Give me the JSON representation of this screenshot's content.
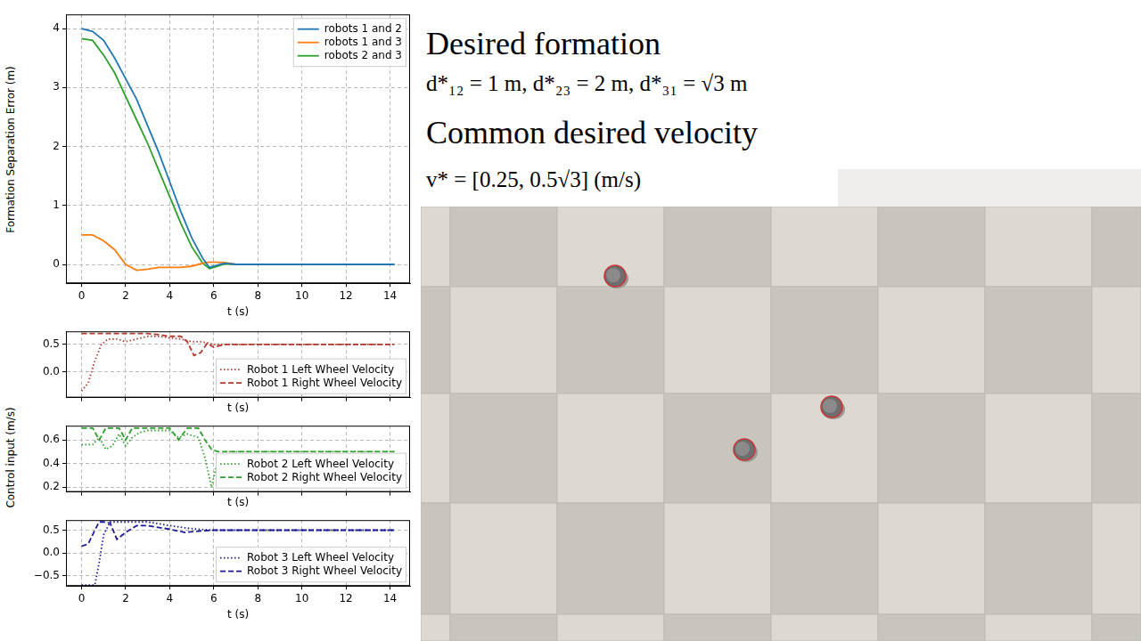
{
  "chart_data": [
    {
      "type": "line",
      "xlabel": "t (s)",
      "ylabel": "Formation Separation Error (m)",
      "xlim": [
        -0.71,
        14.91
      ],
      "xticks": [
        0,
        2,
        4,
        6,
        8,
        10,
        12,
        14
      ],
      "ylim": [
        -0.32,
        4.24
      ],
      "yticks": [
        0,
        1,
        2,
        3,
        4
      ],
      "grid": true,
      "legend": "upper right",
      "x": [
        0,
        0.5,
        1,
        1.5,
        2,
        2.5,
        3,
        3.5,
        4,
        4.5,
        5,
        5.5,
        5.8,
        6,
        6.5,
        7,
        8,
        10,
        12,
        14.2
      ],
      "series": [
        {
          "name": "robots 1 and 2",
          "color": "#1f77b4",
          "line_style": "solid",
          "values": [
            4.0,
            3.95,
            3.8,
            3.5,
            3.15,
            2.8,
            2.35,
            1.9,
            1.4,
            0.9,
            0.45,
            0.1,
            -0.05,
            -0.03,
            0.02,
            0,
            0,
            0,
            0,
            0
          ]
        },
        {
          "name": "robots 1 and 3",
          "color": "#ff7f0e",
          "line_style": "solid",
          "values": [
            0.5,
            0.5,
            0.4,
            0.25,
            0.0,
            -0.1,
            -0.08,
            -0.05,
            -0.05,
            -0.05,
            -0.03,
            0.02,
            0.04,
            0.04,
            0.03,
            0,
            0,
            0,
            0,
            0
          ]
        },
        {
          "name": "robots 2 and 3",
          "color": "#2ca02c",
          "line_style": "solid",
          "values": [
            3.83,
            3.8,
            3.55,
            3.25,
            2.85,
            2.45,
            2.05,
            1.6,
            1.15,
            0.7,
            0.3,
            0.02,
            -0.07,
            -0.05,
            0.01,
            0,
            0,
            0,
            0,
            0
          ]
        }
      ]
    },
    {
      "type": "line",
      "xlabel": "t (s)",
      "xlim": [
        -0.71,
        14.91
      ],
      "xticks": [
        0,
        2,
        4,
        6,
        8,
        10,
        12,
        14
      ],
      "ylim": [
        -0.47,
        0.74
      ],
      "yticks": [
        {
          "value": 0,
          "label": "0.0"
        },
        0.5
      ],
      "grid": true,
      "legend": "lower right",
      "tick_labels": "y",
      "x": [
        0,
        0.3,
        0.6,
        0.9,
        1.2,
        1.6,
        2,
        2.5,
        3,
        3.5,
        4,
        4.5,
        4.8,
        5.1,
        5.4,
        5.7,
        6,
        6.5,
        7,
        10,
        14.2
      ],
      "series": [
        {
          "name": "Robot 1 Left Wheel Velocity",
          "color": "#b03a2e",
          "line_style": "dotted",
          "values": [
            -0.35,
            -0.2,
            0.2,
            0.5,
            0.6,
            0.6,
            0.55,
            0.6,
            0.65,
            0.65,
            0.62,
            0.6,
            0.57,
            0.55,
            0.55,
            0.53,
            0.5,
            0.5,
            0.5,
            0.5,
            0.5
          ]
        },
        {
          "name": "Robot 1 Right Wheel Velocity",
          "color": "#b03a2e",
          "line_style": "dashed",
          "values": [
            0.7,
            0.7,
            0.7,
            0.7,
            0.7,
            0.7,
            0.7,
            0.7,
            0.7,
            0.68,
            0.65,
            0.65,
            0.55,
            0.3,
            0.35,
            0.52,
            0.45,
            0.5,
            0.5,
            0.5,
            0.5
          ]
        }
      ]
    },
    {
      "type": "line",
      "xlabel": "t (s)",
      "ylabel": "Control input (m/s)",
      "xlim": [
        -0.71,
        14.91
      ],
      "xticks": [
        0,
        2,
        4,
        6,
        8,
        10,
        12,
        14
      ],
      "ylim": [
        0.16,
        0.72
      ],
      "yticks": [
        0.2,
        0.4,
        0.6
      ],
      "grid": true,
      "legend": "lower right",
      "tick_labels": "y",
      "x": [
        0,
        0.5,
        0.8,
        1.1,
        1.4,
        1.7,
        2,
        2.3,
        2.6,
        3,
        4,
        4.4,
        4.8,
        5.3,
        5.6,
        5.9,
        6.2,
        6.5,
        7,
        10,
        14.2
      ],
      "series": [
        {
          "name": "Robot 2 Left Wheel Velocity",
          "color": "#2ca02c",
          "line_style": "dotted",
          "values": [
            0.56,
            0.56,
            0.62,
            0.52,
            0.55,
            0.65,
            0.55,
            0.62,
            0.66,
            0.68,
            0.68,
            0.62,
            0.65,
            0.62,
            0.45,
            0.2,
            0.45,
            0.5,
            0.5,
            0.5,
            0.5
          ]
        },
        {
          "name": "Robot 2 Right Wheel Velocity",
          "color": "#2ca02c",
          "line_style": "dashed",
          "values": [
            0.7,
            0.7,
            0.6,
            0.7,
            0.7,
            0.7,
            0.6,
            0.7,
            0.7,
            0.7,
            0.7,
            0.6,
            0.7,
            0.7,
            0.6,
            0.52,
            0.5,
            0.5,
            0.5,
            0.5,
            0.5
          ]
        }
      ]
    },
    {
      "type": "line",
      "xlabel": "t (s)",
      "xlim": [
        -0.71,
        14.91
      ],
      "xticks": [
        0,
        2,
        4,
        6,
        8,
        10,
        12,
        14
      ],
      "ylim": [
        -0.72,
        0.72
      ],
      "yticks": [
        {
          "value": -0.5,
          "label": "−0.5"
        },
        {
          "value": 0,
          "label": "0.0"
        },
        0.5
      ],
      "grid": true,
      "legend": "lower right",
      "x": [
        0,
        0.3,
        0.6,
        0.8,
        1,
        1.3,
        1.6,
        2,
        2.5,
        3,
        4,
        4.7,
        5.3,
        6,
        7,
        10,
        14.2
      ],
      "series": [
        {
          "name": "Robot 3 Left Wheel Velocity",
          "color": "#1a1a9c",
          "line_style": "dotted",
          "values": [
            -0.7,
            -0.7,
            -0.7,
            -0.2,
            0.4,
            0.68,
            0.68,
            0.68,
            0.68,
            0.68,
            0.6,
            0.55,
            0.52,
            0.5,
            0.5,
            0.5,
            0.5
          ]
        },
        {
          "name": "Robot 3 Right Wheel Velocity",
          "color": "#1a1a9c",
          "line_style": "dashed",
          "values": [
            0.15,
            0.2,
            0.5,
            0.68,
            0.68,
            0.65,
            0.3,
            0.45,
            0.6,
            0.6,
            0.52,
            0.45,
            0.48,
            0.5,
            0.5,
            0.5,
            0.5
          ]
        }
      ]
    }
  ],
  "text_panel": {
    "formation_title": "Desired formation",
    "formation": "d*₁₂ = 1 m, d*₂₃ = 2 m, d*₃₁ = √3 m",
    "velocity_title": "Common desired velocity",
    "velocity": "v* = [0.25, 0.5√3] (m/s)"
  }
}
